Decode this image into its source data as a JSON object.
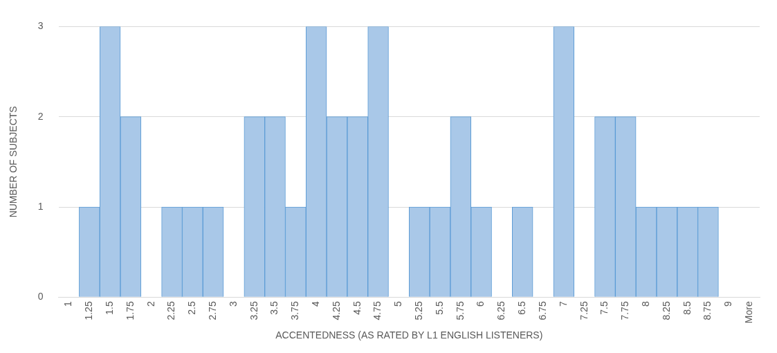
{
  "chart_data": {
    "type": "bar",
    "xlabel": "ACCENTEDNESS (AS RATED BY L1 ENGLISH LISTENERS)",
    "ylabel": "NUMBER OF SUBJECTS",
    "categories": [
      "1",
      "1.25",
      "1.5",
      "1.75",
      "2",
      "2.25",
      "2.5",
      "2.75",
      "3",
      "3.25",
      "3.5",
      "3.75",
      "4",
      "4.25",
      "4.5",
      "4.75",
      "5",
      "5.25",
      "5.5",
      "5.75",
      "6",
      "6.25",
      "6.5",
      "6.75",
      "7",
      "7.25",
      "7.5",
      "7.75",
      "8",
      "8.25",
      "8.5",
      "8.75",
      "9",
      "More"
    ],
    "values": [
      0,
      1,
      3,
      2,
      0,
      1,
      1,
      1,
      0,
      2,
      2,
      1,
      3,
      2,
      2,
      3,
      0,
      1,
      1,
      2,
      1,
      0,
      1,
      0,
      3,
      0,
      2,
      2,
      1,
      1,
      1,
      1,
      0,
      0
    ],
    "color": "#a9c8e8",
    "ylim": [
      0,
      3
    ],
    "yticks": [
      0,
      1,
      2,
      3
    ],
    "grid": "y"
  }
}
